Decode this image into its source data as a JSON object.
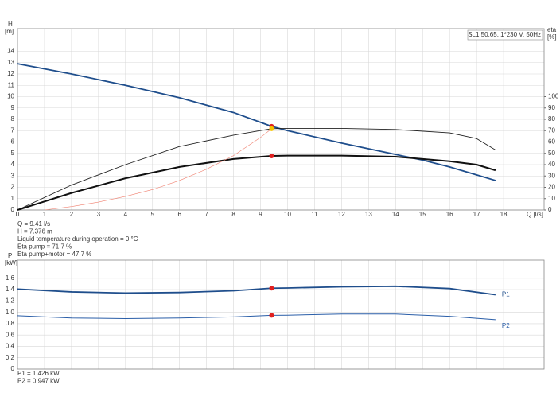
{
  "chart_data": [
    {
      "type": "line",
      "annotation_box": "SL1.50.65, 1*230 V, 50Hz",
      "ylabel": "H",
      "yunit": "[m]",
      "y2label": "eta",
      "y2unit": "[%]",
      "xlabel": "Q [l/s]",
      "xlim": [
        0,
        19.5
      ],
      "xticks": [
        0,
        1,
        2,
        3,
        4,
        5,
        6,
        7,
        8,
        9,
        10,
        11,
        12,
        13,
        14,
        15,
        16,
        17,
        18
      ],
      "ylim": [
        0,
        16
      ],
      "yticks": [
        0,
        1,
        2,
        3,
        4,
        5,
        6,
        7,
        8,
        9,
        10,
        11,
        12,
        13,
        14
      ],
      "y2lim": [
        0,
        160
      ],
      "y2ticks": [
        0,
        10,
        20,
        30,
        40,
        50,
        60,
        70,
        80,
        90,
        100
      ],
      "grid": true,
      "series": [
        {
          "color": "#1f4e8c",
          "x": [
            0,
            2,
            4,
            6,
            8,
            9.41,
            10,
            12,
            14,
            15,
            16,
            17,
            17.7
          ],
          "values": [
            12.9,
            12.0,
            11.0,
            9.9,
            8.6,
            7.376,
            7.0,
            5.9,
            4.9,
            4.4,
            3.8,
            3.1,
            2.6
          ]
        },
        {
          "color": "#222222",
          "axis": "y2",
          "x": [
            0,
            2,
            4,
            6,
            8,
            9.41,
            10,
            12,
            14,
            16,
            17,
            17.7
          ],
          "values": [
            0,
            22,
            40,
            56,
            66,
            71.7,
            72,
            72,
            71,
            68,
            63,
            53
          ]
        },
        {
          "color": "#111111",
          "axis": "y2",
          "x": [
            0,
            2,
            4,
            6,
            8,
            9.41,
            10,
            12,
            14,
            16,
            17,
            17.7
          ],
          "values": [
            0,
            15,
            28,
            38,
            45,
            47.7,
            48,
            48,
            47,
            43,
            40,
            35
          ]
        },
        {
          "color": "#f08070",
          "x": [
            1,
            2,
            3,
            4,
            5,
            6,
            7,
            8,
            9,
            9.41
          ],
          "values": [
            0,
            0.3,
            0.7,
            1.2,
            1.8,
            2.6,
            3.6,
            4.8,
            6.4,
            7.17
          ]
        }
      ],
      "points": [
        {
          "x": 9.41,
          "y": 7.376,
          "color": "#e02020"
        },
        {
          "x": 9.41,
          "y": 71.7,
          "axis": "y2",
          "color": "#f5c400"
        },
        {
          "x": 9.41,
          "y": 47.7,
          "axis": "y2",
          "color": "#e02020"
        }
      ],
      "notes": [
        "Q = 9.41 l/s",
        "H = 7.376 m",
        "Liquid temperature during operation = 0 °C",
        "Eta pump = 71.7 %",
        "Eta pump+motor = 47.7 %"
      ]
    },
    {
      "type": "line",
      "ylabel": "P",
      "yunit": "[kW]",
      "xlim": [
        0,
        19.5
      ],
      "xticks": [
        0,
        1,
        2,
        3,
        4,
        5,
        6,
        7,
        8,
        9,
        10,
        11,
        12,
        13,
        14,
        15,
        16,
        17,
        18
      ],
      "ylim": [
        0,
        1.92
      ],
      "yticks": [
        0,
        0.2,
        0.4,
        0.6,
        0.8,
        {
          "value": 1,
          "label": "1.0"
        },
        1.2,
        1.4,
        1.6
      ],
      "grid": true,
      "series": [
        {
          "name": "P1",
          "color": "#1f4e8c",
          "x": [
            0,
            2,
            4,
            6,
            8,
            9.41,
            10,
            12,
            14,
            16,
            17.7
          ],
          "values": [
            1.41,
            1.36,
            1.34,
            1.35,
            1.38,
            1.426,
            1.43,
            1.45,
            1.46,
            1.42,
            1.31
          ]
        },
        {
          "name": "P2",
          "color": "#2a5ea8",
          "x": [
            0,
            2,
            4,
            6,
            8,
            9.41,
            10,
            12,
            14,
            16,
            17.7
          ],
          "values": [
            0.94,
            0.9,
            0.89,
            0.9,
            0.92,
            0.947,
            0.95,
            0.97,
            0.97,
            0.93,
            0.87
          ]
        }
      ],
      "points": [
        {
          "x": 9.41,
          "y": 1.426,
          "color": "#e02020"
        },
        {
          "x": 9.41,
          "y": 0.947,
          "color": "#e02020"
        }
      ],
      "notes": [
        "P1 = 1.426 kW",
        "P2 = 0.947 kW"
      ]
    }
  ]
}
